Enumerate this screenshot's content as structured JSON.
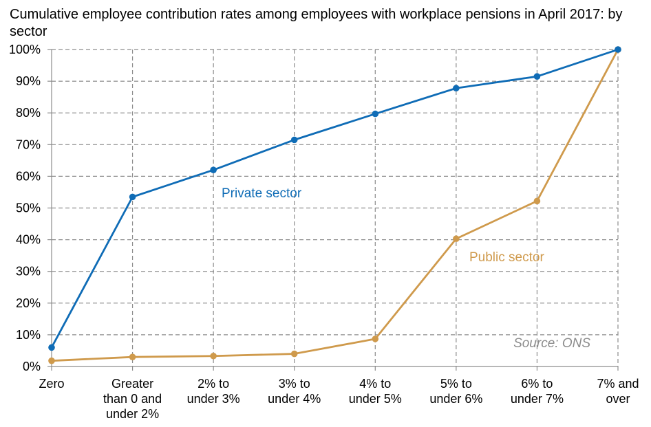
{
  "chart_data": {
    "type": "line",
    "title": "Cumulative employee contribution rates among employees with workplace pensions in April 2017: by sector",
    "xlabel": "",
    "ylabel": "",
    "categories": [
      "Zero",
      "Greater than 0 and under 2%",
      "2% to under 3%",
      "3% to under 4%",
      "4% to under 5%",
      "5% to under 6%",
      "6% to under 7%",
      "7% and over"
    ],
    "category_lines": [
      [
        "Zero"
      ],
      [
        "Greater",
        "than 0 and",
        "under 2%"
      ],
      [
        "2% to",
        "under 3%"
      ],
      [
        "3% to",
        "under 4%"
      ],
      [
        "4% to",
        "under 5%"
      ],
      [
        "5% to",
        "under 6%"
      ],
      [
        "6% to",
        "under 7%"
      ],
      [
        "7% and",
        "over"
      ]
    ],
    "ylim": [
      0,
      100
    ],
    "yticks": [
      "0%",
      "10%",
      "20%",
      "30%",
      "40%",
      "50%",
      "60%",
      "70%",
      "80%",
      "90%",
      "100%"
    ],
    "grid": true,
    "series": [
      {
        "name": "Private sector",
        "color": "#0f6cb6",
        "values": [
          6,
          53.5,
          62,
          71.5,
          79.7,
          87.8,
          91.5,
          100
        ]
      },
      {
        "name": "Public sector",
        "color": "#cf9a4c",
        "values": [
          1.8,
          3,
          3.3,
          4,
          8.7,
          40.3,
          52.2,
          100
        ]
      }
    ],
    "annotation": "Source: ONS"
  }
}
